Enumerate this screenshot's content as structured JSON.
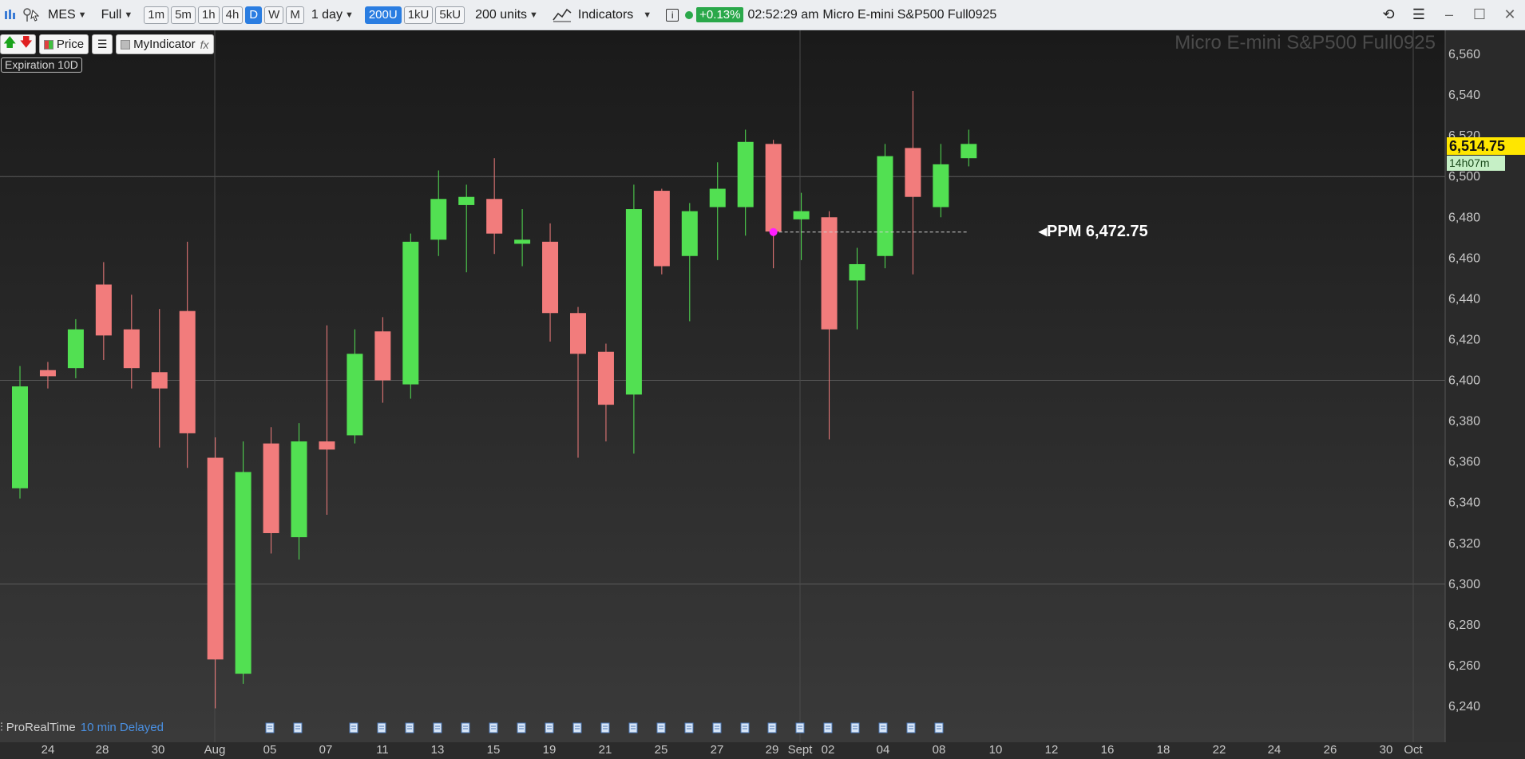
{
  "toolbar": {
    "symbol": "MES",
    "session": "Full",
    "timeframes": [
      "1m",
      "5m",
      "1h",
      "4h",
      "D",
      "W",
      "M"
    ],
    "active_timeframe": "D",
    "period": "1 day",
    "units_buttons": [
      "200U",
      "1kU",
      "5kU"
    ],
    "active_units": "200U",
    "units": "200 units",
    "indicators_label": "Indicators",
    "change_pct": "+0.13%",
    "time": "02:52:29 am",
    "instrument_name": "Micro E-mini S&P500 Full0925"
  },
  "legend": {
    "price_label": "Price",
    "indicator_label": "MyIndicator",
    "fx": "fx",
    "expiration": "Expiration 10D"
  },
  "watermark": "Micro E-mini S&P500 Full0925",
  "last_price": "6,514.75",
  "countdown": "14h07m",
  "ppm_label": "◂PPM 6,472.75",
  "footer": {
    "brand": "ProRealTime",
    "delay": "10 min Delayed"
  },
  "colors": {
    "up": "#52e052",
    "down": "#f27c7c",
    "ppm_dot": "#ff1dff",
    "price_tag": "#ffe600",
    "toolbar_bg": "#eceef1"
  },
  "chart_data": {
    "type": "candlestick",
    "title": "Micro E-mini S&P500 Full0925",
    "ylim": [
      6230,
      6570
    ],
    "y_ticks": [
      6560,
      6540,
      6520,
      6500,
      6480,
      6460,
      6440,
      6420,
      6400,
      6380,
      6360,
      6340,
      6320,
      6300,
      6280,
      6260,
      6240
    ],
    "y_tick_labels": [
      "6,560",
      "6,540",
      "6,520",
      "6,500",
      "6,480",
      "6,460",
      "6,440",
      "6,420",
      "6,400",
      "6,380",
      "6,360",
      "6,340",
      "6,320",
      "6,300",
      "6,280",
      "6,260",
      "6,240"
    ],
    "x_labels": [
      "24",
      "28",
      "30",
      "Aug",
      "05",
      "07",
      "11",
      "13",
      "15",
      "19",
      "21",
      "25",
      "27",
      "29",
      "Sept",
      "02",
      "04",
      "08",
      "10",
      "12",
      "16",
      "18",
      "22",
      "24",
      "26",
      "30",
      "Oct"
    ],
    "candles": [
      {
        "o": 6347,
        "h": 6407,
        "l": 6342,
        "c": 6397
      },
      {
        "o": 6405,
        "h": 6409,
        "l": 6396,
        "c": 6402
      },
      {
        "o": 6406,
        "h": 6430,
        "l": 6401,
        "c": 6425
      },
      {
        "o": 6447,
        "h": 6458,
        "l": 6410,
        "c": 6422
      },
      {
        "o": 6425,
        "h": 6442,
        "l": 6396,
        "c": 6406
      },
      {
        "o": 6404,
        "h": 6435,
        "l": 6367,
        "c": 6396
      },
      {
        "o": 6434,
        "h": 6468,
        "l": 6357,
        "c": 6374
      },
      {
        "o": 6362,
        "h": 6372,
        "l": 6239,
        "c": 6263
      },
      {
        "o": 6256,
        "h": 6370,
        "l": 6251,
        "c": 6355
      },
      {
        "o": 6369,
        "h": 6377,
        "l": 6315,
        "c": 6325
      },
      {
        "o": 6323,
        "h": 6379,
        "l": 6312,
        "c": 6370
      },
      {
        "o": 6370,
        "h": 6427,
        "l": 6334,
        "c": 6366
      },
      {
        "o": 6373,
        "h": 6425,
        "l": 6369,
        "c": 6413
      },
      {
        "o": 6424,
        "h": 6431,
        "l": 6389,
        "c": 6400
      },
      {
        "o": 6398,
        "h": 6472,
        "l": 6391,
        "c": 6468
      },
      {
        "o": 6469,
        "h": 6503,
        "l": 6461,
        "c": 6489
      },
      {
        "o": 6486,
        "h": 6496,
        "l": 6453,
        "c": 6490
      },
      {
        "o": 6489,
        "h": 6509,
        "l": 6462,
        "c": 6472
      },
      {
        "o": 6467,
        "h": 6484,
        "l": 6456,
        "c": 6469
      },
      {
        "o": 6468,
        "h": 6477,
        "l": 6419,
        "c": 6433
      },
      {
        "o": 6433,
        "h": 6436,
        "l": 6362,
        "c": 6413
      },
      {
        "o": 6414,
        "h": 6418,
        "l": 6370,
        "c": 6388
      },
      {
        "o": 6393,
        "h": 6496,
        "l": 6364,
        "c": 6484
      },
      {
        "o": 6493,
        "h": 6494,
        "l": 6452,
        "c": 6456
      },
      {
        "o": 6461,
        "h": 6487,
        "l": 6429,
        "c": 6483
      },
      {
        "o": 6485,
        "h": 6507,
        "l": 6459,
        "c": 6494
      },
      {
        "o": 6485,
        "h": 6523,
        "l": 6471,
        "c": 6517
      },
      {
        "o": 6516,
        "h": 6518,
        "l": 6455,
        "c": 6473
      },
      {
        "o": 6479,
        "h": 6492,
        "l": 6459,
        "c": 6483
      },
      {
        "o": 6480,
        "h": 6483,
        "l": 6371,
        "c": 6425
      },
      {
        "o": 6449,
        "h": 6465,
        "l": 6425,
        "c": 6457
      },
      {
        "o": 6461,
        "h": 6516,
        "l": 6455,
        "c": 6510
      },
      {
        "o": 6514,
        "h": 6542,
        "l": 6452,
        "c": 6490
      },
      {
        "o": 6485,
        "h": 6516,
        "l": 6480,
        "c": 6506
      },
      {
        "o": 6509,
        "h": 6523,
        "l": 6505,
        "c": 6516
      }
    ],
    "ppm": {
      "value": 6472.75,
      "candle_index": 27
    }
  }
}
